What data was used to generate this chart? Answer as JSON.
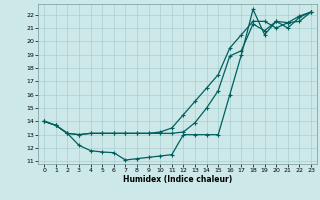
{
  "xlabel": "Humidex (Indice chaleur)",
  "xlim": [
    -0.5,
    23.5
  ],
  "ylim": [
    10.8,
    22.8
  ],
  "yticks": [
    11,
    12,
    13,
    14,
    15,
    16,
    17,
    18,
    19,
    20,
    21,
    22
  ],
  "xticks": [
    0,
    1,
    2,
    3,
    4,
    5,
    6,
    7,
    8,
    9,
    10,
    11,
    12,
    13,
    14,
    15,
    16,
    17,
    18,
    19,
    20,
    21,
    22,
    23
  ],
  "bg_color": "#cce8e8",
  "line_color": "#006060",
  "grid_color": "#aacfcf",
  "line1_x": [
    0,
    1,
    2,
    3,
    4,
    5,
    6,
    7,
    8,
    9,
    10,
    11,
    12,
    13,
    14,
    15,
    16,
    17,
    18,
    19,
    20,
    21,
    22,
    23
  ],
  "line1_y": [
    14.0,
    13.7,
    13.1,
    13.0,
    13.1,
    13.1,
    13.1,
    13.1,
    13.1,
    13.1,
    13.1,
    13.1,
    13.2,
    13.9,
    15.0,
    16.3,
    18.9,
    19.3,
    21.3,
    20.8,
    21.5,
    21.4,
    21.9,
    22.2
  ],
  "line2_x": [
    0,
    1,
    2,
    3,
    4,
    5,
    6,
    7,
    8,
    9,
    10,
    11,
    12,
    13,
    14,
    15,
    16,
    17,
    18,
    19,
    20,
    21,
    22,
    23
  ],
  "line2_y": [
    14.0,
    13.7,
    13.1,
    12.2,
    11.8,
    11.7,
    11.65,
    11.1,
    11.2,
    11.3,
    11.4,
    11.5,
    13.0,
    13.0,
    13.0,
    13.0,
    16.0,
    19.0,
    22.4,
    20.5,
    21.5,
    21.0,
    21.8,
    22.2
  ],
  "line3_x": [
    0,
    1,
    2,
    3,
    4,
    5,
    6,
    7,
    8,
    9,
    10,
    11,
    12,
    13,
    14,
    15,
    16,
    17,
    18,
    19,
    20,
    21,
    22,
    23
  ],
  "line3_y": [
    14.0,
    13.7,
    13.1,
    13.0,
    13.1,
    13.1,
    13.1,
    13.1,
    13.1,
    13.1,
    13.2,
    13.5,
    14.5,
    15.5,
    16.5,
    17.5,
    19.5,
    20.5,
    21.5,
    21.5,
    21.0,
    21.4,
    21.5,
    22.2
  ]
}
